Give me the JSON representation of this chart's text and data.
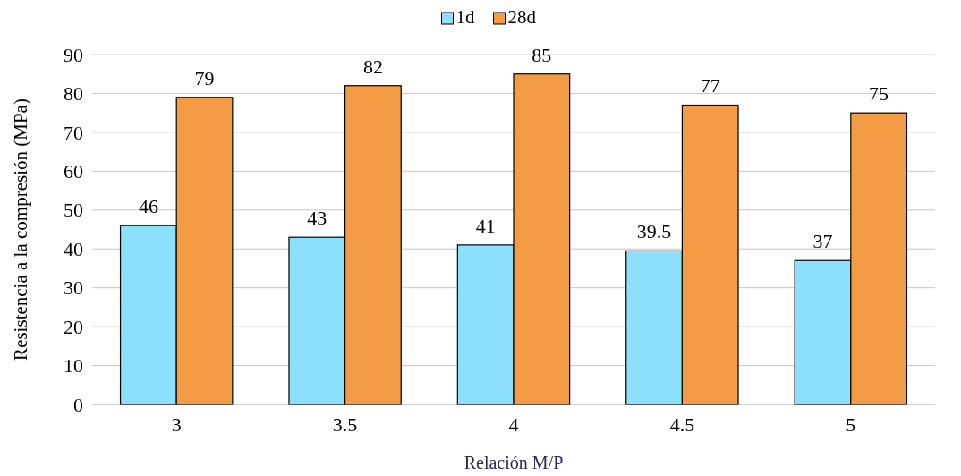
{
  "chart_data": {
    "type": "bar",
    "xlabel": "Relación M/P",
    "ylabel": "Resistencia a la compresión (MPa)",
    "categories": [
      "3",
      "3.5",
      "4",
      "4.5",
      "5"
    ],
    "series": [
      {
        "name": "1d",
        "color": "#8ce0fb",
        "values": [
          46,
          43,
          41,
          39.5,
          37
        ]
      },
      {
        "name": "28d",
        "color": "#f39c45",
        "values": [
          79,
          82,
          85,
          77,
          75
        ]
      }
    ],
    "ylim": [
      0,
      90
    ],
    "yticks": [
      0,
      10,
      20,
      30,
      40,
      50,
      60,
      70,
      80,
      90
    ],
    "grid": "y",
    "legend": "top",
    "data_labels": true
  }
}
